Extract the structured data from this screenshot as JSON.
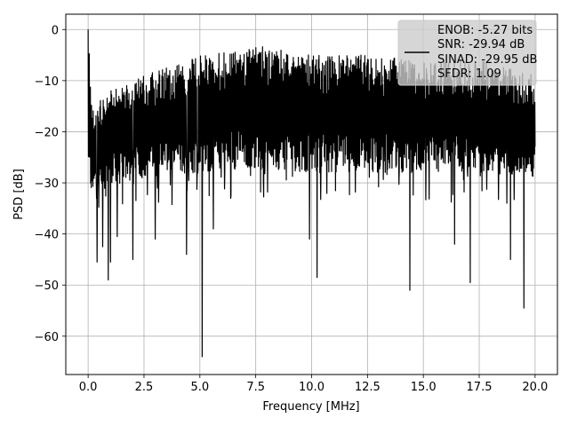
{
  "chart_data": {
    "type": "line",
    "title": "",
    "xlabel": "Frequency [MHz]",
    "ylabel": "PSD [dB]",
    "xlim": [
      -1.0,
      21.0
    ],
    "ylim": [
      -67.5,
      3.0
    ],
    "grid": true,
    "legend_position": "top-right",
    "x_ticks": [
      0.0,
      2.5,
      5.0,
      7.5,
      10.0,
      12.5,
      15.0,
      17.5,
      20.0
    ],
    "x_tick_labels": [
      "0.0",
      "2.5",
      "5.0",
      "7.5",
      "10.0",
      "12.5",
      "15.0",
      "17.5",
      "20.0"
    ],
    "y_ticks": [
      0,
      -10,
      -20,
      -30,
      -40,
      -50,
      -60
    ],
    "y_tick_labels": [
      "0",
      "−10",
      "−20",
      "−30",
      "−40",
      "−50",
      "−60"
    ],
    "series": [
      {
        "color": "#000000",
        "x_range": [
          0.0,
          20.0
        ],
        "band_upper": [
          [
            0.0,
            0.0
          ],
          [
            0.25,
            -15
          ],
          [
            1.0,
            -12
          ],
          [
            2.5,
            -9
          ],
          [
            5.0,
            -5
          ],
          [
            7.5,
            -3
          ],
          [
            10.0,
            -5
          ],
          [
            12.5,
            -5
          ],
          [
            15.0,
            -6
          ],
          [
            17.5,
            -6
          ],
          [
            20.0,
            -9
          ]
        ],
        "band_lower": [
          [
            0.0,
            -32
          ],
          [
            2.5,
            -29
          ],
          [
            5.0,
            -28
          ],
          [
            7.5,
            -27
          ],
          [
            10.0,
            -28
          ],
          [
            12.5,
            -28
          ],
          [
            15.0,
            -28
          ],
          [
            17.5,
            -28
          ],
          [
            20.0,
            -29
          ]
        ],
        "spikes": [
          {
            "x": 0.0,
            "y": 0.0
          },
          {
            "x": 0.4,
            "y": -45.5
          },
          {
            "x": 0.65,
            "y": -42.5
          },
          {
            "x": 0.9,
            "y": -49
          },
          {
            "x": 1.0,
            "y": -45.5
          },
          {
            "x": 1.3,
            "y": -40.5
          },
          {
            "x": 2.0,
            "y": -45
          },
          {
            "x": 3.0,
            "y": -41
          },
          {
            "x": 4.4,
            "y": -44
          },
          {
            "x": 5.1,
            "y": -64
          },
          {
            "x": 5.6,
            "y": -39
          },
          {
            "x": 9.9,
            "y": -41
          },
          {
            "x": 10.25,
            "y": -48.5
          },
          {
            "x": 14.4,
            "y": -51
          },
          {
            "x": 16.4,
            "y": -42
          },
          {
            "x": 17.1,
            "y": -49.5
          },
          {
            "x": 18.9,
            "y": -45
          },
          {
            "x": 19.5,
            "y": -54.5
          }
        ]
      }
    ],
    "legend": {
      "lines": [
        "ENOB: -5.27 bits",
        "SNR: -29.94 dB",
        "SINAD: -29.95 dB",
        "SFDR: 1.09"
      ]
    }
  }
}
